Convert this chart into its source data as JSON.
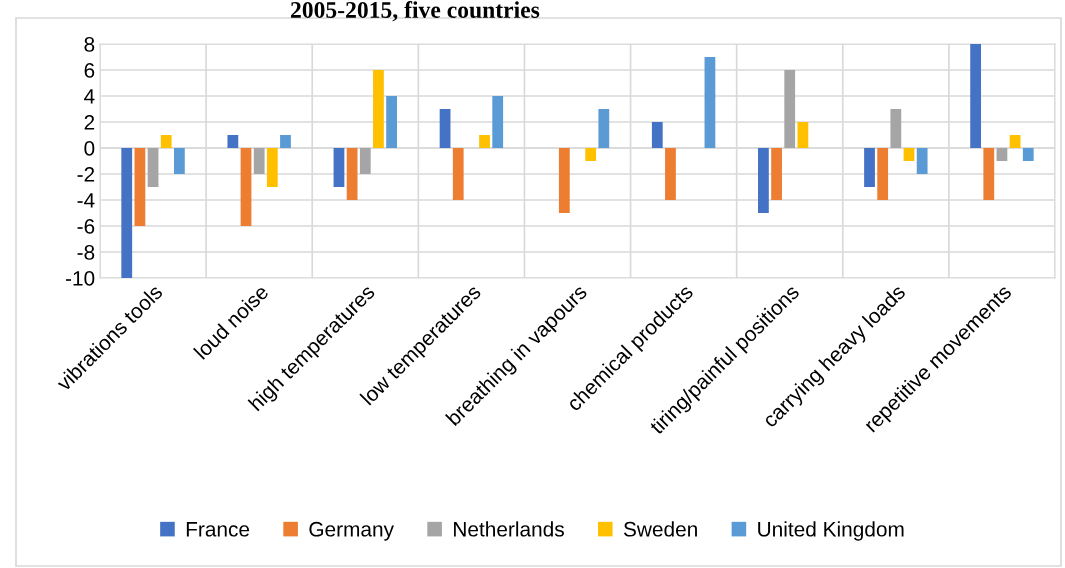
{
  "chart_data": {
    "type": "bar",
    "title": "2005-2015, five countries",
    "categories": [
      "vibrations tools",
      "loud noise",
      "high temperatures",
      "low temperatures",
      "breathing in vapours",
      "chemical products",
      "tiring/painful positions",
      "carrying heavy loads",
      "repetitive movements"
    ],
    "series": [
      {
        "name": "France",
        "color": "#4472c4",
        "values": [
          -10,
          1,
          -3,
          3,
          0,
          2,
          -5,
          -3,
          8
        ]
      },
      {
        "name": "Germany",
        "color": "#ed7d31",
        "values": [
          -6,
          -6,
          -4,
          -4,
          -5,
          -4,
          -4,
          -4,
          -4
        ]
      },
      {
        "name": "Netherlands",
        "color": "#a5a5a5",
        "values": [
          -3,
          -2,
          -2,
          0,
          0,
          0,
          6,
          3,
          -1
        ]
      },
      {
        "name": "Sweden",
        "color": "#ffc000",
        "values": [
          1,
          -3,
          6,
          1,
          -1,
          0,
          2,
          -1,
          1
        ]
      },
      {
        "name": "United Kingdom",
        "color": "#5b9bd5",
        "values": [
          -2,
          1,
          4,
          4,
          3,
          7,
          0,
          -2,
          -1
        ]
      }
    ],
    "ylim": [
      -10,
      8
    ],
    "yticks": [
      -10,
      -8,
      -6,
      -4,
      -2,
      0,
      2,
      4,
      6,
      8
    ],
    "grid": true,
    "legend": "bottom"
  }
}
